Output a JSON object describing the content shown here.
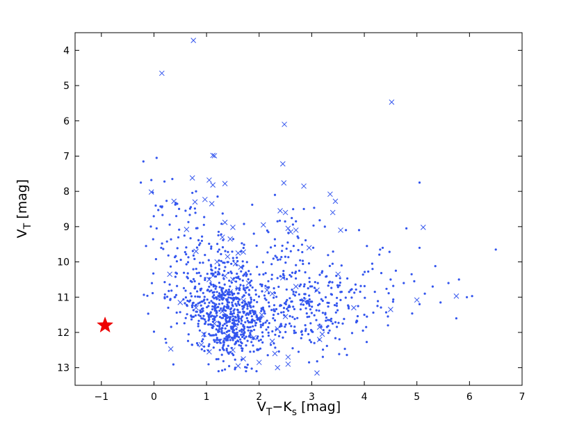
{
  "chart_data": {
    "type": "scatter",
    "xlabel": "V_T−K_s [mag]",
    "xlabel_parts": {
      "main1": "V",
      "sub1": "T",
      "mid": "−K",
      "sub2": "s",
      "unit": " [mag]"
    },
    "ylabel": "V_T [mag]",
    "ylabel_parts": {
      "main": "V",
      "sub": "T",
      "unit": " [mag]"
    },
    "xlim": [
      -1.5,
      7
    ],
    "ylim": [
      13.5,
      3.5
    ],
    "y_inverted": true,
    "xticks": [
      -1,
      0,
      1,
      2,
      3,
      4,
      5,
      6,
      7
    ],
    "xtick_labels": [
      "−1",
      "0",
      "1",
      "2",
      "3",
      "4",
      "5",
      "6",
      "7"
    ],
    "yticks": [
      4,
      5,
      6,
      7,
      8,
      9,
      10,
      11,
      12,
      13
    ],
    "ytick_labels": [
      "4",
      "5",
      "6",
      "7",
      "8",
      "9",
      "10",
      "11",
      "12",
      "13"
    ],
    "grid": false,
    "colors": {
      "points": "#3355ee",
      "crosses": "#3355ee",
      "star": "#ee0000"
    },
    "star": {
      "x": -0.93,
      "y": 11.8
    },
    "crosses": [
      [
        0.75,
        3.72
      ],
      [
        0.15,
        4.65
      ],
      [
        4.52,
        5.47
      ],
      [
        2.48,
        6.1
      ],
      [
        1.12,
        6.98
      ],
      [
        1.15,
        6.99
      ],
      [
        2.45,
        7.22
      ],
      [
        0.73,
        7.62
      ],
      [
        1.05,
        7.68
      ],
      [
        1.12,
        7.82
      ],
      [
        1.35,
        7.78
      ],
      [
        2.47,
        7.76
      ],
      [
        2.85,
        7.85
      ],
      [
        -0.05,
        8.02
      ],
      [
        0.38,
        8.28
      ],
      [
        0.78,
        8.3
      ],
      [
        0.97,
        8.23
      ],
      [
        1.1,
        8.35
      ],
      [
        3.35,
        8.08
      ],
      [
        3.45,
        8.28
      ],
      [
        2.4,
        8.55
      ],
      [
        2.5,
        8.6
      ],
      [
        3.4,
        8.6
      ],
      [
        1.35,
        8.88
      ],
      [
        1.5,
        9.02
      ],
      [
        2.08,
        8.95
      ],
      [
        2.55,
        9.05
      ],
      [
        2.7,
        9.1
      ],
      [
        2.6,
        9.15
      ],
      [
        3.55,
        9.1
      ],
      [
        5.12,
        9.02
      ],
      [
        0.62,
        9.08
      ],
      [
        1.3,
        9.3
      ],
      [
        1.45,
        9.35
      ],
      [
        2.95,
        9.6
      ],
      [
        1.6,
        9.75
      ],
      [
        1.7,
        9.72
      ],
      [
        0.8,
        9.7
      ],
      [
        1.4,
        9.85
      ],
      [
        1.2,
        10.0
      ],
      [
        1.55,
        10.05
      ],
      [
        1.65,
        10.15
      ],
      [
        0.3,
        10.35
      ],
      [
        1.05,
        10.5
      ],
      [
        1.35,
        10.4
      ],
      [
        1.5,
        10.5
      ],
      [
        1.8,
        10.6
      ],
      [
        3.5,
        10.35
      ],
      [
        2.45,
        10.45
      ],
      [
        2.15,
        10.8
      ],
      [
        2.7,
        10.7
      ],
      [
        2.25,
        10.9
      ],
      [
        3.1,
        10.8
      ],
      [
        1.45,
        10.85
      ],
      [
        1.6,
        10.75
      ],
      [
        1.25,
        11.0
      ],
      [
        1.7,
        11.1
      ],
      [
        2.85,
        11.1
      ],
      [
        0.5,
        11.15
      ],
      [
        0.8,
        11.3
      ],
      [
        1.3,
        11.4
      ],
      [
        2.05,
        11.5
      ],
      [
        2.5,
        11.55
      ],
      [
        3.8,
        11.3
      ],
      [
        4.5,
        11.35
      ],
      [
        5.75,
        10.97
      ],
      [
        5.0,
        11.08
      ],
      [
        1.15,
        11.75
      ],
      [
        1.55,
        11.8
      ],
      [
        2.35,
        11.9
      ],
      [
        3.15,
        11.85
      ],
      [
        0.95,
        12.05
      ],
      [
        1.4,
        12.1
      ],
      [
        1.9,
        12.15
      ],
      [
        2.25,
        12.25
      ],
      [
        3.2,
        12.05
      ],
      [
        3.15,
        12.2
      ],
      [
        0.9,
        12.35
      ],
      [
        0.32,
        12.47
      ],
      [
        1.05,
        12.55
      ],
      [
        1.5,
        12.5
      ],
      [
        2.3,
        12.6
      ],
      [
        1.7,
        12.75
      ],
      [
        2.0,
        12.85
      ],
      [
        2.55,
        12.9
      ],
      [
        1.6,
        12.95
      ],
      [
        2.35,
        13.0
      ],
      [
        3.1,
        13.15
      ],
      [
        2.55,
        12.7
      ],
      [
        1.25,
        12.25
      ]
    ],
    "dot_clusters": [
      {
        "cx": 1.45,
        "cy": 11.6,
        "sx": 0.35,
        "sy": 0.6,
        "n": 520
      },
      {
        "cx": 1.2,
        "cy": 10.6,
        "sx": 0.5,
        "sy": 0.8,
        "n": 200
      },
      {
        "cx": 2.75,
        "cy": 11.3,
        "sx": 0.55,
        "sy": 0.65,
        "n": 230
      },
      {
        "cx": 0.65,
        "cy": 10.5,
        "sx": 0.4,
        "sy": 1.1,
        "n": 70
      },
      {
        "cx": 2.45,
        "cy": 9.6,
        "sx": 0.35,
        "sy": 0.55,
        "n": 40
      },
      {
        "cx": 3.9,
        "cy": 10.9,
        "sx": 0.6,
        "sy": 0.55,
        "n": 55
      },
      {
        "cx": 0.4,
        "cy": 8.6,
        "sx": 0.35,
        "sy": 0.45,
        "n": 22
      }
    ],
    "extra_dots": [
      [
        -0.2,
        7.15
      ],
      [
        0.05,
        7.05
      ],
      [
        -0.25,
        7.75
      ],
      [
        -0.05,
        7.68
      ],
      [
        0.2,
        7.72
      ],
      [
        0.35,
        7.65
      ],
      [
        -0.15,
        9.55
      ],
      [
        0.0,
        11.98
      ],
      [
        0.05,
        9.05
      ],
      [
        2.85,
        8.5
      ],
      [
        3.25,
        9.0
      ],
      [
        3.65,
        9.1
      ],
      [
        3.9,
        9.1
      ],
      [
        4.05,
        9.55
      ],
      [
        4.15,
        10.05
      ],
      [
        4.3,
        9.65
      ],
      [
        4.35,
        9.6
      ],
      [
        4.5,
        10.5
      ],
      [
        4.6,
        10.25
      ],
      [
        4.75,
        10.6
      ],
      [
        4.8,
        9.05
      ],
      [
        4.9,
        10.35
      ],
      [
        4.95,
        10.55
      ],
      [
        5.05,
        7.75
      ],
      [
        5.05,
        9.6
      ],
      [
        5.05,
        11.2
      ],
      [
        5.15,
        10.9
      ],
      [
        5.3,
        10.7
      ],
      [
        5.35,
        10.12
      ],
      [
        5.45,
        11.15
      ],
      [
        5.6,
        10.6
      ],
      [
        5.75,
        11.6
      ],
      [
        5.8,
        10.5
      ],
      [
        5.95,
        11.0
      ],
      [
        6.05,
        10.97
      ],
      [
        6.5,
        9.65
      ],
      [
        4.45,
        11.8
      ],
      [
        4.25,
        11.25
      ],
      [
        4.0,
        11.5
      ],
      [
        3.85,
        11.7
      ],
      [
        4.2,
        10.85
      ],
      [
        2.95,
        12.85
      ],
      [
        3.05,
        12.3
      ],
      [
        2.75,
        12.55
      ],
      [
        1.95,
        13.1
      ],
      [
        1.75,
        13.1
      ],
      [
        1.35,
        13.05
      ],
      [
        2.7,
        8.85
      ],
      [
        2.3,
        8.1
      ],
      [
        2.35,
        8.85
      ],
      [
        1.9,
        9.2
      ],
      [
        0.8,
        8.0
      ],
      [
        0.6,
        8.55
      ],
      [
        0.95,
        8.95
      ],
      [
        0.15,
        8.45
      ]
    ]
  }
}
